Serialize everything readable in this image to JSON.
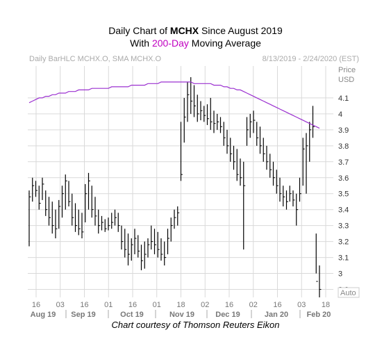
{
  "title": {
    "line1_prefix": "Daily Chart of ",
    "line1_ticker": "MCHX",
    "line1_suffix": " Since August 2019",
    "line2_prefix": "With ",
    "line2_highlight": "200-Day",
    "line2_suffix": " Moving Average"
  },
  "legend_left": "Daily BarHLC MCHX.O, SMA MCHX.O",
  "legend_right": "8/13/2019 - 2/24/2020 (EST)",
  "axis_price_label": "Price",
  "axis_unit_label": "USD",
  "auto_label": "Auto",
  "caption": "Chart courtesy of Thomson Reuters Eikon",
  "colors": {
    "bars": "#000000",
    "sma": "#9b30d0",
    "grid": "#d9d9d9",
    "axis_text": "#888888"
  },
  "chart_data": {
    "type": "line",
    "series": [
      {
        "name": "SMA"
      }
    ],
    "ylim": [
      2.85,
      4.3
    ],
    "y_ticks": [
      "4.1",
      "4",
      "3.9",
      "3.8",
      "3.7",
      "3.6",
      "3.5",
      "3.4",
      "3.3",
      "3.2",
      "3.1",
      "3",
      "2.9"
    ],
    "x_day_ticks": [
      "16",
      "03",
      "16",
      "01",
      "16",
      "01",
      "18",
      "02",
      "16",
      "02",
      "16",
      "03",
      "18"
    ],
    "x_month_labels": [
      "Aug 19",
      "Sep 19",
      "Oct 19",
      "Nov 19",
      "Dec 19",
      "Jan 20",
      "Feb 20"
    ],
    "bars": [
      [
        3.17,
        3.52,
        3.48
      ],
      [
        3.45,
        3.6,
        3.55
      ],
      [
        3.48,
        3.58,
        3.52
      ],
      [
        3.4,
        3.55,
        3.44
      ],
      [
        3.46,
        3.6,
        3.56
      ],
      [
        3.36,
        3.52,
        3.4
      ],
      [
        3.3,
        3.48,
        3.35
      ],
      [
        3.25,
        3.45,
        3.3
      ],
      [
        3.22,
        3.4,
        3.28
      ],
      [
        3.28,
        3.46,
        3.42
      ],
      [
        3.35,
        3.55,
        3.5
      ],
      [
        3.4,
        3.62,
        3.58
      ],
      [
        3.42,
        3.58,
        3.45
      ],
      [
        3.3,
        3.5,
        3.35
      ],
      [
        3.26,
        3.44,
        3.3
      ],
      [
        3.24,
        3.4,
        3.28
      ],
      [
        3.22,
        3.38,
        3.26
      ],
      [
        3.32,
        3.56,
        3.5
      ],
      [
        3.4,
        3.63,
        3.58
      ],
      [
        3.35,
        3.55,
        3.4
      ],
      [
        3.3,
        3.48,
        3.36
      ],
      [
        3.25,
        3.4,
        3.3
      ],
      [
        3.27,
        3.36,
        3.32
      ],
      [
        3.26,
        3.34,
        3.28
      ],
      [
        3.27,
        3.35,
        3.3
      ],
      [
        3.28,
        3.38,
        3.32
      ],
      [
        3.3,
        3.4,
        3.35
      ],
      [
        3.26,
        3.38,
        3.3
      ],
      [
        3.15,
        3.3,
        3.2
      ],
      [
        3.1,
        3.28,
        3.15
      ],
      [
        3.05,
        3.25,
        3.12
      ],
      [
        3.08,
        3.22,
        3.18
      ],
      [
        3.12,
        3.28,
        3.22
      ],
      [
        3.1,
        3.24,
        3.14
      ],
      [
        3.02,
        3.18,
        3.08
      ],
      [
        3.03,
        3.2,
        3.12
      ],
      [
        3.1,
        3.22,
        3.18
      ],
      [
        3.15,
        3.3,
        3.2
      ],
      [
        3.12,
        3.28,
        3.18
      ],
      [
        3.1,
        3.26,
        3.15
      ],
      [
        3.08,
        3.22,
        3.12
      ],
      [
        3.05,
        3.2,
        3.1
      ],
      [
        3.12,
        3.28,
        3.22
      ],
      [
        3.2,
        3.35,
        3.3
      ],
      [
        3.28,
        3.4,
        3.35
      ],
      [
        3.3,
        3.42,
        3.38
      ],
      [
        3.58,
        3.95,
        3.62
      ],
      [
        3.82,
        4.1,
        3.98
      ],
      [
        3.95,
        4.2,
        4.12
      ],
      [
        4.0,
        4.23,
        4.08
      ],
      [
        3.98,
        4.18,
        4.05
      ],
      [
        3.95,
        4.12,
        4.0
      ],
      [
        3.96,
        4.08,
        4.02
      ],
      [
        3.95,
        4.05,
        3.99
      ],
      [
        3.93,
        4.06,
        3.97
      ],
      [
        3.9,
        4.1,
        3.95
      ],
      [
        3.88,
        4.02,
        3.94
      ],
      [
        3.9,
        4.0,
        3.95
      ],
      [
        3.88,
        3.98,
        3.92
      ],
      [
        3.8,
        3.95,
        3.85
      ],
      [
        3.75,
        3.9,
        3.8
      ],
      [
        3.7,
        3.85,
        3.75
      ],
      [
        3.65,
        3.8,
        3.7
      ],
      [
        3.58,
        3.78,
        3.62
      ],
      [
        3.55,
        3.72,
        3.6
      ],
      [
        3.15,
        3.7,
        3.55
      ],
      [
        3.8,
        3.98,
        3.9
      ],
      [
        3.85,
        4.0,
        3.95
      ],
      [
        3.88,
        4.02,
        3.96
      ],
      [
        3.8,
        3.95,
        3.85
      ],
      [
        3.75,
        3.92,
        3.8
      ],
      [
        3.7,
        3.85,
        3.75
      ],
      [
        3.65,
        3.8,
        3.7
      ],
      [
        3.6,
        3.75,
        3.65
      ],
      [
        3.55,
        3.7,
        3.6
      ],
      [
        3.5,
        3.65,
        3.55
      ],
      [
        3.45,
        3.6,
        3.5
      ],
      [
        3.42,
        3.55,
        3.48
      ],
      [
        3.4,
        3.52,
        3.45
      ],
      [
        3.45,
        3.55,
        3.5
      ],
      [
        3.42,
        3.52,
        3.46
      ],
      [
        3.3,
        3.5,
        3.4
      ],
      [
        3.45,
        3.6,
        3.5
      ],
      [
        3.55,
        3.85,
        3.78
      ],
      [
        3.5,
        3.88,
        3.8
      ],
      [
        3.7,
        3.95,
        3.9
      ],
      [
        3.85,
        4.05,
        3.92
      ],
      [
        3.0,
        3.25,
        2.95
      ],
      [
        2.85,
        3.05,
        2.9
      ]
    ],
    "sma": [
      4.07,
      4.08,
      4.09,
      4.1,
      4.1,
      4.11,
      4.11,
      4.12,
      4.12,
      4.13,
      4.13,
      4.13,
      4.14,
      4.14,
      4.14,
      4.15,
      4.15,
      4.15,
      4.15,
      4.16,
      4.16,
      4.16,
      4.16,
      4.16,
      4.16,
      4.17,
      4.17,
      4.17,
      4.17,
      4.17,
      4.17,
      4.18,
      4.18,
      4.18,
      4.18,
      4.18,
      4.19,
      4.19,
      4.19,
      4.19,
      4.2,
      4.2,
      4.2,
      4.2,
      4.2,
      4.2,
      4.2,
      4.2,
      4.2,
      4.2,
      4.19,
      4.19,
      4.19,
      4.19,
      4.19,
      4.19,
      4.18,
      4.18,
      4.18,
      4.17,
      4.17,
      4.16,
      4.16,
      4.15,
      4.15,
      4.14,
      4.13,
      4.12,
      4.11,
      4.1,
      4.09,
      4.08,
      4.07,
      4.06,
      4.05,
      4.04,
      4.03,
      4.02,
      4.01,
      4.0,
      3.99,
      3.98,
      3.97,
      3.96,
      3.95,
      3.94,
      3.93,
      3.92,
      3.91
    ]
  }
}
